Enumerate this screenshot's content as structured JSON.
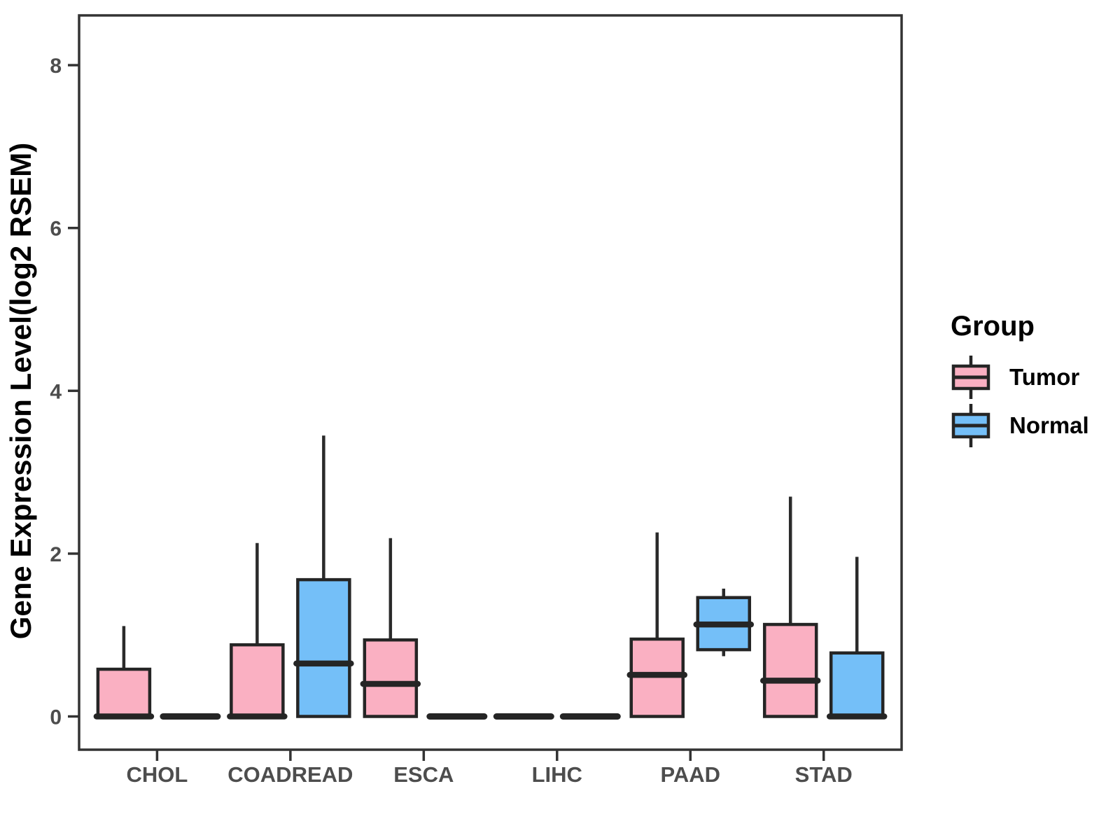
{
  "chart_data": {
    "type": "boxplot",
    "title": "",
    "xlabel": "",
    "ylabel": "Gene Expression Level(log2 RSEM)",
    "ylim": [
      -0.4,
      8.6
    ],
    "yticks": [
      0,
      2,
      4,
      6,
      8
    ],
    "grid": false,
    "categories": [
      "CHOL",
      "COADREAD",
      "ESCA",
      "LIHC",
      "PAAD",
      "STAD"
    ],
    "legend": {
      "title": "Group",
      "position": "right",
      "entries": [
        {
          "label": "Tumor",
          "color": "#FAB0C2"
        },
        {
          "label": "Normal",
          "color": "#74BFF8"
        }
      ]
    },
    "series": [
      {
        "name": "Tumor",
        "color": "#FAB0C2",
        "boxes": [
          {
            "category": "CHOL",
            "whisker_low": 0,
            "q1": 0,
            "median": 0,
            "q3": 0.58,
            "whisker_high": 1.11
          },
          {
            "category": "COADREAD",
            "whisker_low": 0,
            "q1": 0,
            "median": 0,
            "q3": 0.88,
            "whisker_high": 2.13
          },
          {
            "category": "ESCA",
            "whisker_low": 0,
            "q1": 0,
            "median": 0.4,
            "q3": 0.94,
            "whisker_high": 2.19
          },
          {
            "category": "LIHC",
            "whisker_low": 0,
            "q1": 0,
            "median": 0,
            "q3": 0,
            "whisker_high": 0
          },
          {
            "category": "PAAD",
            "whisker_low": 0,
            "q1": 0,
            "median": 0.51,
            "q3": 0.95,
            "whisker_high": 2.26
          },
          {
            "category": "STAD",
            "whisker_low": 0,
            "q1": 0,
            "median": 0.44,
            "q3": 1.13,
            "whisker_high": 2.7
          }
        ]
      },
      {
        "name": "Normal",
        "color": "#74BFF8",
        "boxes": [
          {
            "category": "CHOL",
            "whisker_low": 0,
            "q1": 0,
            "median": 0,
            "q3": 0,
            "whisker_high": 0
          },
          {
            "category": "COADREAD",
            "whisker_low": 0,
            "q1": 0,
            "median": 0.65,
            "q3": 1.68,
            "whisker_high": 3.45
          },
          {
            "category": "ESCA",
            "whisker_low": 0,
            "q1": 0,
            "median": 0,
            "q3": 0,
            "whisker_high": 0
          },
          {
            "category": "LIHC",
            "whisker_low": 0,
            "q1": 0,
            "median": 0,
            "q3": 0,
            "whisker_high": 0
          },
          {
            "category": "PAAD",
            "whisker_low": 0.74,
            "q1": 0.82,
            "median": 1.13,
            "q3": 1.46,
            "whisker_high": 1.57
          },
          {
            "category": "STAD",
            "whisker_low": 0,
            "q1": 0,
            "median": 0,
            "q3": 0.78,
            "whisker_high": 1.96
          }
        ]
      }
    ],
    "colors": {
      "box_border": "#252525",
      "median_line": "#252525",
      "whisker": "#2a2a2a",
      "panel_border": "#333333",
      "tick_mark": "#333333",
      "tick_label": "#4d4d4d",
      "axis_title": "#000000",
      "background": "#ffffff"
    }
  }
}
